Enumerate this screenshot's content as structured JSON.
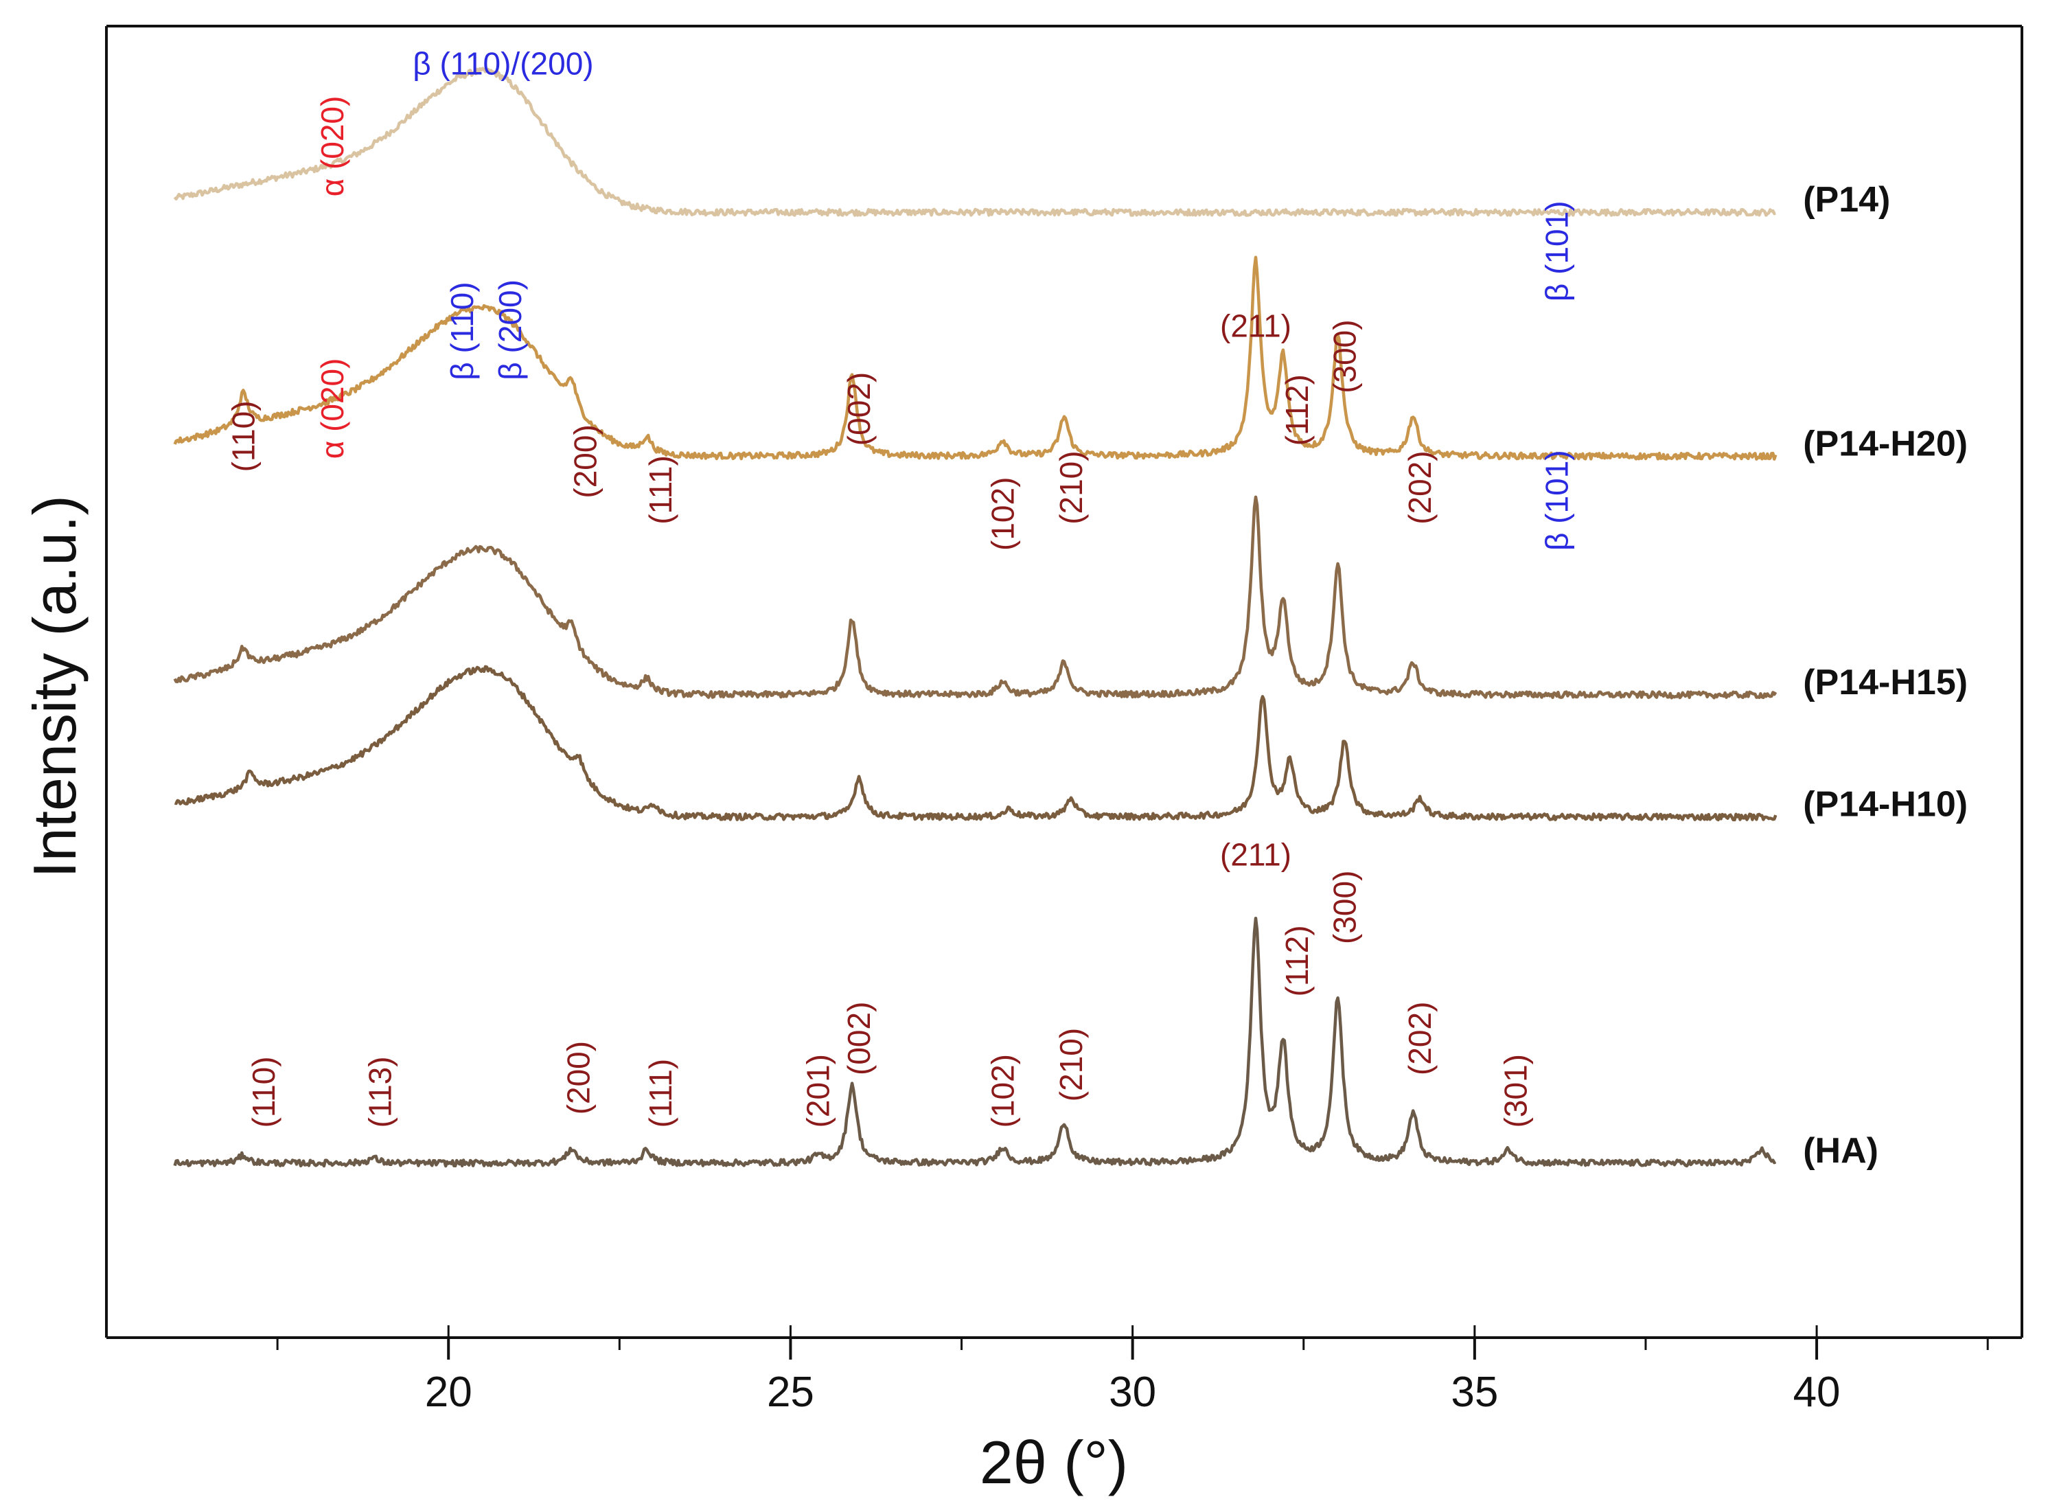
{
  "chart_data": {
    "type": "line",
    "title": "",
    "xlabel": "2θ (°)",
    "ylabel": "Intensity (a.u.)",
    "xlim": [
      15,
      43
    ],
    "x_ticks": [
      20,
      25,
      30,
      35,
      40
    ],
    "x_tick_labels": [
      "20",
      "25",
      "30",
      "35",
      "40"
    ],
    "x_minor_step": 2.5,
    "grid": false,
    "legend": "labels at right end of each trace",
    "colors": {
      "P14": "#d9c3a0",
      "P14-H20": "#c8954a",
      "P14-H15": "#8a6a48",
      "P14-H10": "#7a5c3e",
      "HA": "#6b5a47",
      "hkl": "#8b1a1a",
      "alpha": "#e8202a",
      "beta": "#2a2ae0"
    },
    "series": [
      {
        "name": "(P14)",
        "key": "P14",
        "baseline": 0.858,
        "amorphous": {
          "center": 20.6,
          "height": 0.098,
          "width": 1.05,
          "shoulder": 0.028,
          "shoulder_center": 18.2,
          "shoulder_width": 1.6
        },
        "peaks": []
      },
      {
        "name": "(P14-H20)",
        "key": "P14-H20",
        "baseline": 0.672,
        "amorphous": {
          "center": 20.6,
          "height": 0.099,
          "width": 1.05,
          "shoulder": 0.034,
          "shoulder_center": 18.4,
          "shoulder_width": 1.6
        },
        "peaks": [
          [
            17.0,
            0.025
          ],
          [
            21.8,
            0.02
          ],
          [
            22.9,
            0.012
          ],
          [
            25.9,
            0.062
          ],
          [
            28.1,
            0.012
          ],
          [
            29.0,
            0.03
          ],
          [
            31.8,
            0.146
          ],
          [
            32.2,
            0.072
          ],
          [
            33.0,
            0.091
          ],
          [
            34.1,
            0.03
          ]
        ]
      },
      {
        "name": "(P14-H15)",
        "key": "P14-H15",
        "baseline": 0.49,
        "amorphous": {
          "center": 20.6,
          "height": 0.1,
          "width": 1.05,
          "shoulder": 0.03,
          "shoulder_center": 18.3,
          "shoulder_width": 1.6
        },
        "peaks": [
          [
            17.0,
            0.014
          ],
          [
            21.8,
            0.016
          ],
          [
            22.9,
            0.01
          ],
          [
            25.9,
            0.058
          ],
          [
            28.1,
            0.01
          ],
          [
            29.0,
            0.025
          ],
          [
            31.8,
            0.147
          ],
          [
            32.2,
            0.068
          ],
          [
            33.0,
            0.098
          ],
          [
            34.1,
            0.024
          ]
        ]
      },
      {
        "name": "(P14-H10)",
        "key": "P14-H10",
        "baseline": 0.397,
        "amorphous": {
          "center": 20.6,
          "height": 0.102,
          "width": 1.05,
          "shoulder": 0.028,
          "shoulder_center": 18.3,
          "shoulder_width": 1.6
        },
        "peaks": [
          [
            17.1,
            0.012
          ],
          [
            21.9,
            0.014
          ],
          [
            23.0,
            0.008
          ],
          [
            26.0,
            0.03
          ],
          [
            28.2,
            0.006
          ],
          [
            29.1,
            0.014
          ],
          [
            31.9,
            0.092
          ],
          [
            32.3,
            0.04
          ],
          [
            33.1,
            0.058
          ],
          [
            34.2,
            0.014
          ]
        ]
      },
      {
        "name": "(HA)",
        "key": "HA",
        "baseline": 0.133,
        "amorphous": null,
        "peaks": [
          [
            17.0,
            0.006
          ],
          [
            18.9,
            0.004
          ],
          [
            21.8,
            0.011
          ],
          [
            22.9,
            0.01
          ],
          [
            25.4,
            0.005
          ],
          [
            25.9,
            0.06
          ],
          [
            28.1,
            0.012
          ],
          [
            29.0,
            0.031
          ],
          [
            31.8,
            0.183
          ],
          [
            32.2,
            0.087
          ],
          [
            33.0,
            0.125
          ],
          [
            34.1,
            0.038
          ],
          [
            35.5,
            0.01
          ],
          [
            39.2,
            0.01
          ]
        ]
      }
    ],
    "annotations": [
      {
        "text": "β (110)/(200)",
        "x": 20.8,
        "y": 0.963,
        "rotate": false,
        "color": "beta"
      },
      {
        "text": "α (020)",
        "x": 18.3,
        "y": 0.87,
        "rotate": true,
        "color": "alpha"
      },
      {
        "text": "β (101)",
        "x": 36.2,
        "y": 0.79,
        "rotate": true,
        "color": "beta"
      },
      {
        "text": "β (110)",
        "x": 20.2,
        "y": 0.73,
        "rotate": true,
        "color": "beta"
      },
      {
        "text": "β (200)",
        "x": 20.9,
        "y": 0.73,
        "rotate": true,
        "color": "beta"
      },
      {
        "text": "(211)",
        "x": 31.8,
        "y": 0.763,
        "rotate": false,
        "color": "hkl"
      },
      {
        "text": "(110)",
        "x": 17.0,
        "y": 0.66,
        "rotate": true,
        "color": "hkl"
      },
      {
        "text": "α (020)",
        "x": 18.3,
        "y": 0.67,
        "rotate": true,
        "color": "alpha"
      },
      {
        "text": "(200)",
        "x": 22.0,
        "y": 0.64,
        "rotate": true,
        "color": "hkl"
      },
      {
        "text": "(111)",
        "x": 23.1,
        "y": 0.62,
        "rotate": true,
        "color": "hkl"
      },
      {
        "text": "(002)",
        "x": 26.0,
        "y": 0.68,
        "rotate": true,
        "color": "hkl"
      },
      {
        "text": "(102)",
        "x": 28.1,
        "y": 0.6,
        "rotate": true,
        "color": "hkl"
      },
      {
        "text": "(210)",
        "x": 29.1,
        "y": 0.62,
        "rotate": true,
        "color": "hkl"
      },
      {
        "text": "(112)",
        "x": 32.4,
        "y": 0.68,
        "rotate": true,
        "color": "hkl"
      },
      {
        "text": "(300)",
        "x": 33.1,
        "y": 0.72,
        "rotate": true,
        "color": "hkl"
      },
      {
        "text": "(202)",
        "x": 34.2,
        "y": 0.62,
        "rotate": true,
        "color": "hkl"
      },
      {
        "text": "β (101)",
        "x": 36.2,
        "y": 0.6,
        "rotate": true,
        "color": "beta"
      },
      {
        "text": "(211)",
        "x": 31.8,
        "y": 0.36,
        "rotate": false,
        "color": "hkl"
      },
      {
        "text": "(110)",
        "x": 17.3,
        "y": 0.16,
        "rotate": true,
        "color": "hkl"
      },
      {
        "text": "(113)",
        "x": 19.0,
        "y": 0.16,
        "rotate": true,
        "color": "hkl"
      },
      {
        "text": "(200)",
        "x": 21.9,
        "y": 0.17,
        "rotate": true,
        "color": "hkl"
      },
      {
        "text": "(111)",
        "x": 23.1,
        "y": 0.16,
        "rotate": true,
        "color": "hkl"
      },
      {
        "text": "(201)",
        "x": 25.4,
        "y": 0.16,
        "rotate": true,
        "color": "hkl"
      },
      {
        "text": "(002)",
        "x": 26.0,
        "y": 0.2,
        "rotate": true,
        "color": "hkl"
      },
      {
        "text": "(102)",
        "x": 28.1,
        "y": 0.16,
        "rotate": true,
        "color": "hkl"
      },
      {
        "text": "(210)",
        "x": 29.1,
        "y": 0.18,
        "rotate": true,
        "color": "hkl"
      },
      {
        "text": "(112)",
        "x": 32.4,
        "y": 0.26,
        "rotate": true,
        "color": "hkl"
      },
      {
        "text": "(300)",
        "x": 33.1,
        "y": 0.3,
        "rotate": true,
        "color": "hkl"
      },
      {
        "text": "(202)",
        "x": 34.2,
        "y": 0.2,
        "rotate": true,
        "color": "hkl"
      },
      {
        "text": "(301)",
        "x": 35.6,
        "y": 0.16,
        "rotate": true,
        "color": "hkl"
      }
    ]
  }
}
